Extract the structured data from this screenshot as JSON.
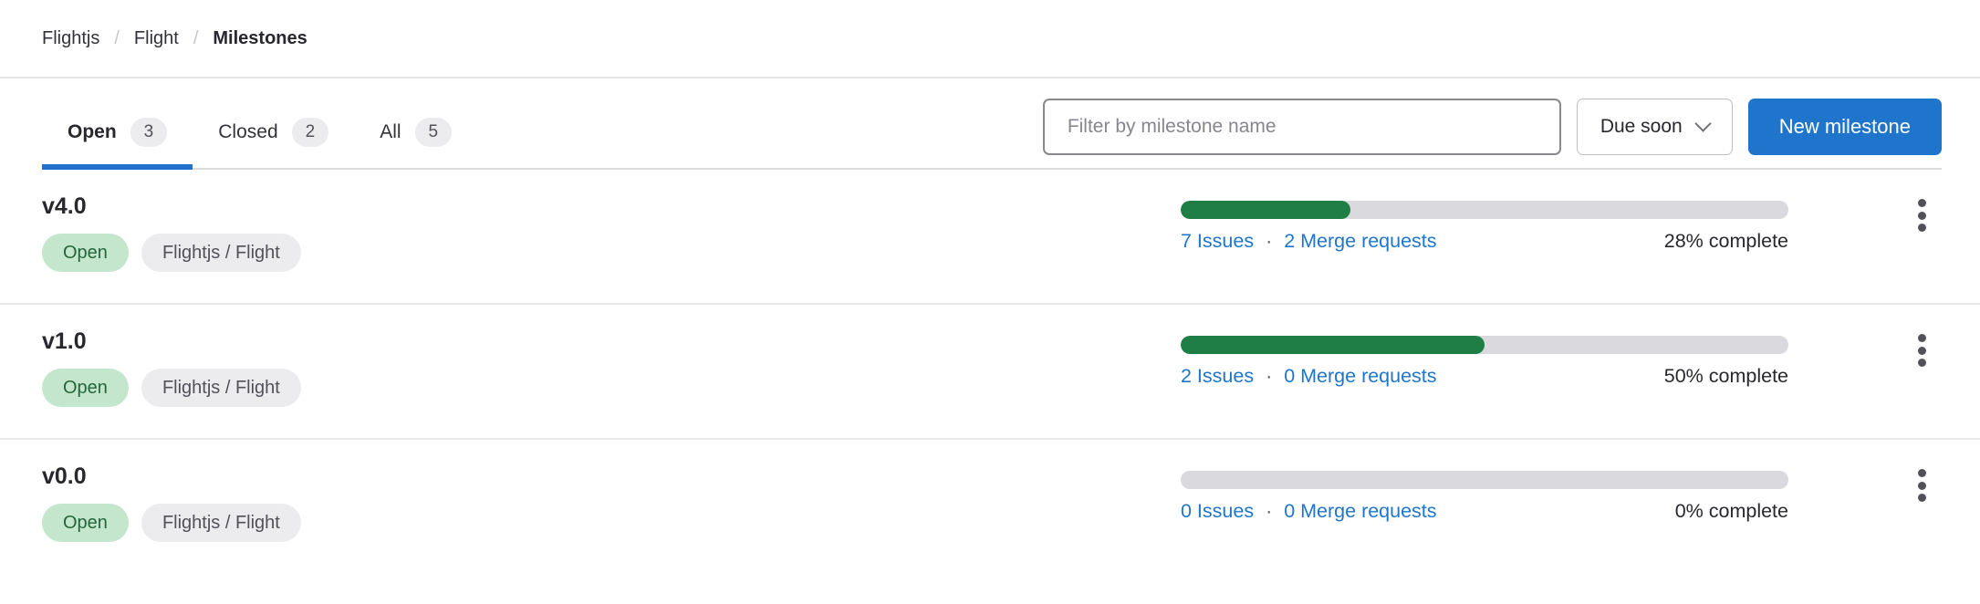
{
  "breadcrumb": {
    "separator": "/",
    "items": [
      {
        "label": "Flightjs"
      },
      {
        "label": "Flight"
      },
      {
        "label": "Milestones"
      }
    ]
  },
  "tabs": [
    {
      "label": "Open",
      "count": "3",
      "active": true
    },
    {
      "label": "Closed",
      "count": "2",
      "active": false
    },
    {
      "label": "All",
      "count": "5",
      "active": false
    }
  ],
  "toolbar": {
    "filter": {
      "placeholder": "Filter by milestone name",
      "value": ""
    },
    "sort": {
      "label": "Due soon"
    },
    "new_milestone": {
      "label": "New milestone"
    }
  },
  "milestones": [
    {
      "title": "v4.0",
      "status_badge": "Open",
      "project_badge": "Flightjs / Flight",
      "issues_link": "7 Issues",
      "separator": "·",
      "merge_requests_link": "2 Merge requests",
      "progress_percent": 28,
      "complete_label": "28% complete"
    },
    {
      "title": "v1.0",
      "status_badge": "Open",
      "project_badge": "Flightjs / Flight",
      "issues_link": "2 Issues",
      "separator": "·",
      "merge_requests_link": "0 Merge requests",
      "progress_percent": 50,
      "complete_label": "50% complete"
    },
    {
      "title": "v0.0",
      "status_badge": "Open",
      "project_badge": "Flightjs / Flight",
      "issues_link": "0 Issues",
      "separator": "·",
      "merge_requests_link": "0 Merge requests",
      "progress_percent": 0,
      "complete_label": "0% complete"
    }
  ],
  "colors": {
    "accent_blue": "#1f75cb",
    "tab_indicator_blue": "#2270cc",
    "progress_green": "#1f7e45",
    "progress_track_gray": "#d9d9de",
    "badge_green_bg": "#c3e6cd",
    "badge_green_text": "#24663b",
    "badge_gray_bg": "#ececef",
    "badge_gray_text": "#535158",
    "title_text": "#28272d"
  }
}
